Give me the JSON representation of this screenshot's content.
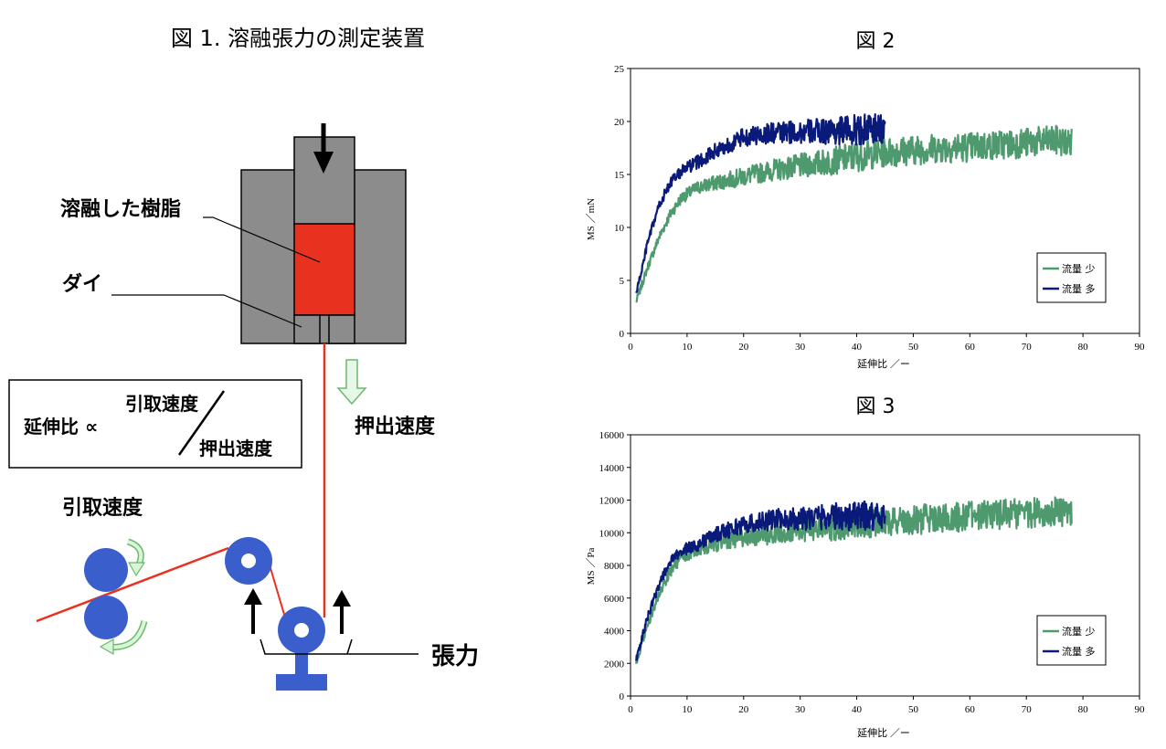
{
  "figure1": {
    "title": "図 1.  溶融張力の測定装置",
    "label_melt": "溶融した樹脂",
    "label_die": "ダイ",
    "formula_lhs": "延伸比  ∝",
    "formula_num": "引取速度",
    "formula_den": "押出速度",
    "label_extrusion_speed": "押出速度",
    "label_takeoff_speed": "引取速度",
    "label_tension": "張力",
    "colors": {
      "die": "#8c8c8c",
      "melt": "#e8321f",
      "roller": "#3a5fcd",
      "strand": "#e8321f",
      "arrow_green": "#a8e6a8"
    }
  },
  "chart_data": [
    {
      "type": "line",
      "title": "図 2",
      "xlabel": "延伸比 ／ー",
      "ylabel": "MS ／mN",
      "xlim": [
        0,
        90
      ],
      "ylim": [
        0,
        25
      ],
      "xticks": [
        0,
        10,
        20,
        30,
        40,
        50,
        60,
        70,
        80,
        90
      ],
      "yticks": [
        0,
        5,
        10,
        15,
        20,
        25
      ],
      "legend_position": "bottom-right",
      "series": [
        {
          "name": "流量 少",
          "color": "#4e9a6e",
          "x": [
            1,
            2,
            3,
            5,
            7,
            9,
            12,
            15,
            20,
            25,
            30,
            35,
            40,
            45,
            50,
            55,
            60,
            65,
            70,
            75,
            78
          ],
          "y": [
            3,
            4.6,
            6.2,
            9,
            11.2,
            12.8,
            13.8,
            14.2,
            14.8,
            15.4,
            15.8,
            16.2,
            16.7,
            17.1,
            17.3,
            17.5,
            17.6,
            17.8,
            18,
            18.2,
            18
          ]
        },
        {
          "name": "流量 多",
          "color": "#0a1a7a",
          "x": [
            1,
            2,
            3,
            5,
            7,
            9,
            12,
            15,
            20,
            25,
            30,
            35,
            40,
            45
          ],
          "y": [
            3.8,
            6,
            8.5,
            12,
            14.2,
            15.3,
            16.2,
            17.2,
            18.5,
            18.9,
            19,
            19.1,
            19.2,
            19.3
          ]
        }
      ]
    },
    {
      "type": "line",
      "title": "図 3",
      "xlabel": "延伸比 ／ー",
      "ylabel": "MS ／Pa",
      "xlim": [
        0,
        90
      ],
      "ylim": [
        0,
        16000
      ],
      "xticks": [
        0,
        10,
        20,
        30,
        40,
        50,
        60,
        70,
        80,
        90
      ],
      "yticks": [
        0,
        2000,
        4000,
        6000,
        8000,
        10000,
        12000,
        14000,
        16000
      ],
      "legend_position": "bottom-right",
      "series": [
        {
          "name": "流量 少",
          "color": "#4e9a6e",
          "x": [
            1,
            2,
            3,
            5,
            7,
            9,
            12,
            15,
            20,
            25,
            30,
            35,
            40,
            45,
            50,
            55,
            60,
            65,
            70,
            75,
            78
          ],
          "y": [
            2000,
            3200,
            4300,
            6200,
            7600,
            8500,
            9000,
            9300,
            9700,
            9900,
            10100,
            10300,
            10500,
            10700,
            10800,
            10900,
            11000,
            11100,
            11200,
            11300,
            11200
          ]
        },
        {
          "name": "流量 多",
          "color": "#0a1a7a",
          "x": [
            1,
            2,
            3,
            5,
            7,
            9,
            12,
            15,
            20,
            25,
            30,
            35,
            40,
            45
          ],
          "y": [
            2200,
            3500,
            4800,
            6800,
            8200,
            8900,
            9300,
            9900,
            10500,
            10800,
            10900,
            11000,
            11000,
            11100
          ]
        }
      ]
    }
  ]
}
